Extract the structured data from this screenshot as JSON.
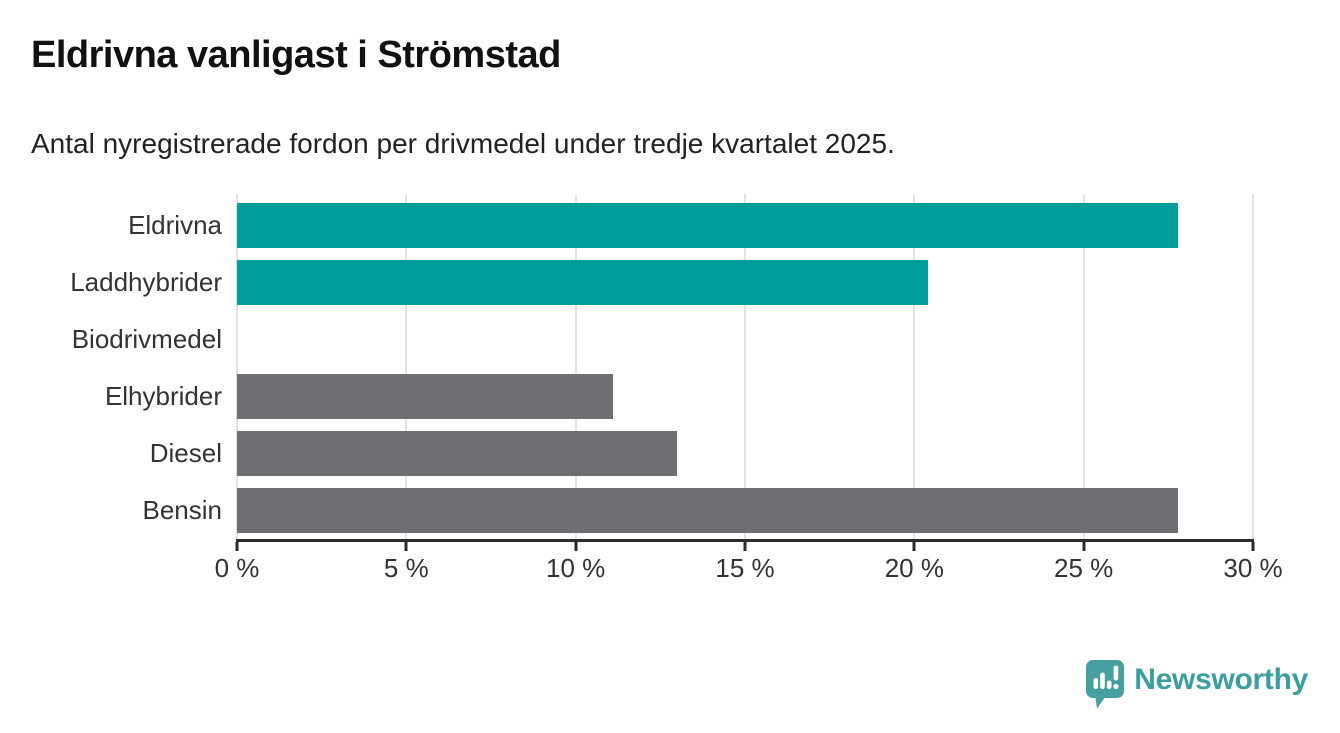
{
  "header": {
    "title": "Eldrivna vanligast i Strömstad",
    "subtitle": "Antal nyregistrerade fordon per drivmedel under tredje kvartalet 2025."
  },
  "chart_data": {
    "type": "bar",
    "orientation": "horizontal",
    "title": "Eldrivna vanligast i Strömstad",
    "subtitle": "Antal nyregistrerade fordon per drivmedel under tredje kvartalet 2025.",
    "categories": [
      "Eldrivna",
      "Laddhybrider",
      "Biodrivmedel",
      "Elhybrider",
      "Diesel",
      "Bensin"
    ],
    "values": [
      27.8,
      20.4,
      0,
      11.1,
      13.0,
      27.8
    ],
    "unit": "%",
    "bar_colors": [
      "#009e9b",
      "#009e9b",
      "#6e6e73",
      "#6e6e73",
      "#6e6e73",
      "#6e6e73"
    ],
    "highlight_color": "#009e9b",
    "default_color": "#6e6e73",
    "xlim": [
      0,
      30
    ],
    "x_ticks": [
      0,
      5,
      10,
      15,
      20,
      25,
      30
    ],
    "x_tick_labels": [
      "0 %",
      "5 %",
      "10 %",
      "15 %",
      "20 %",
      "25 %",
      "30 %"
    ],
    "grid": true,
    "gridline_color": "#e2e2e2",
    "axis_color": "#2b2b2b",
    "legend": "none"
  },
  "branding": {
    "logo_text": "Newsworthy",
    "logo_text_color": "#3c9ea0",
    "logo_icon": "newsworthy-speech-bubble-bar-chart-icon",
    "logo_icon_color": "#46a0a2"
  }
}
